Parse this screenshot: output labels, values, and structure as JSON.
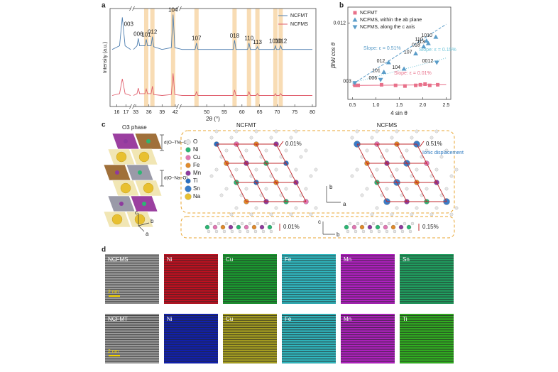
{
  "chart_data": [
    {
      "type": "line",
      "panel_label": "a",
      "ylabel": "Intensity (a.u.)",
      "xlabel": "2θ (°)",
      "x": [
        15.5,
        16.3,
        16.6,
        16.9,
        17.5,
        25,
        32.5,
        33.3,
        33.6,
        33.9,
        35.1,
        35.4,
        35.7,
        36.5,
        36.8,
        37.1,
        39,
        41.1,
        41.5,
        41.9,
        43,
        46.7,
        47.1,
        47.5,
        50,
        57.5,
        57.9,
        58.3,
        60,
        61.6,
        62,
        62.4,
        64,
        64.4,
        64.8,
        69.2,
        69.5,
        69.8,
        70.6,
        71,
        71.4,
        75,
        80
      ],
      "xlim": [
        [
          15.5,
          17.5
        ],
        [
          32.5,
          42.5
        ],
        [
          42.5,
          80
        ]
      ],
      "xticks": [
        16,
        17,
        33,
        36,
        39,
        42,
        50,
        55,
        60,
        65,
        70,
        75,
        80
      ],
      "ylim": [
        0,
        105
      ],
      "series": [
        {
          "name": "NCFMT",
          "color": "#4f7fb0",
          "values": [
            62,
            66,
            97,
            66,
            62,
            null,
            62,
            66,
            74,
            66,
            66,
            73,
            66,
            66,
            76,
            65,
            62,
            64,
            100,
            64,
            62,
            62,
            69,
            62,
            62,
            62,
            72,
            62,
            62,
            62,
            69,
            62,
            62,
            65,
            62,
            62,
            66,
            62,
            62,
            66,
            62,
            62,
            62
          ]
        },
        {
          "name": "NCFMS",
          "color": "#e0606e",
          "values": [
            12,
            14,
            30,
            14,
            12,
            null,
            12,
            14,
            20,
            14,
            14,
            19,
            14,
            14,
            22,
            13,
            12,
            13,
            36,
            13,
            12,
            12,
            16,
            12,
            12,
            12,
            18,
            12,
            12,
            12,
            16,
            12,
            12,
            14,
            12,
            12,
            14,
            12,
            12,
            14,
            12,
            12,
            12
          ]
        }
      ],
      "peak_labels": [
        {
          "label": "003",
          "x": 16.6
        },
        {
          "label": "006",
          "x": 33.6
        },
        {
          "label": "101",
          "x": 35.4
        },
        {
          "label": "012",
          "x": 36.8
        },
        {
          "label": "104",
          "x": 41.5
        },
        {
          "label": "107",
          "x": 47.1
        },
        {
          "label": "018",
          "x": 57.9
        },
        {
          "label": "110",
          "x": 62
        },
        {
          "label": "113",
          "x": 64.4
        },
        {
          "label": "1010",
          "x": 69.5
        },
        {
          "label": "0012",
          "x": 71
        }
      ]
    },
    {
      "type": "scatter",
      "panel_label": "b",
      "xlabel": "4 sin θ",
      "ylabel": "βhkl cos θ",
      "xlim": [
        0.4,
        2.6
      ],
      "xticks": [
        0.5,
        {
          "value": 1,
          "label": "1.0"
        },
        1.5,
        {
          "value": 2,
          "label": "2.0"
        },
        2.5
      ],
      "ylim": [
        0,
        0.0145
      ],
      "yticks": [
        0.012
      ],
      "series": [
        {
          "name": "NCFMT",
          "color": "#e8708a",
          "marker": "square",
          "x": [
            0.55,
            0.62,
            1.12,
            1.42,
            1.62,
            1.85,
            1.95,
            2.05,
            2.15,
            2.32
          ],
          "values": [
            0.0022,
            0.0022,
            0.0023,
            0.0022,
            0.0021,
            0.0022,
            0.0023,
            0.0024,
            0.0022,
            0.0023
          ]
        },
        {
          "name": "NCFMS, within the ab plane",
          "color": "#5a9cc8",
          "marker": "triangle-up",
          "x": [
            1.17,
            1.27,
            1.6,
            1.85,
            2.02,
            2.08,
            2.12,
            2.28
          ],
          "values": [
            0.0043,
            0.0058,
            0.0048,
            0.0072,
            0.0083,
            0.0092,
            0.0088,
            0.0098
          ],
          "point_labels": [
            "101",
            "012",
            "104",
            "107",
            "018",
            "110",
            "113",
            "1010"
          ]
        },
        {
          "name": "NCFMS, along the c axis",
          "color": "#5a9cc8",
          "marker": "triangle-down",
          "x": [
            0.55,
            1.1,
            2.3
          ],
          "values": [
            0.0026,
            0.0031,
            0.0058
          ],
          "point_labels": [
            "003",
            "006",
            "0012"
          ]
        }
      ],
      "fits": [
        {
          "label": "Slope: ε = 0.51%",
          "color": "#5a9cc8",
          "style": "dashed",
          "x": [
            0.5,
            2.5
          ],
          "y": [
            0.0024,
            0.0118
          ]
        },
        {
          "label": "Slope: ε = 0.15%",
          "color": "#6cc4d8",
          "style": "dotted",
          "x": [
            0.5,
            2.5
          ],
          "y": [
            0.0026,
            0.0065
          ]
        },
        {
          "label": "Slope: ε = 0.01%",
          "color": "#e8708a",
          "style": "solid",
          "x": [
            0.5,
            2.5
          ],
          "y": [
            0.0022,
            0.0023
          ]
        }
      ]
    }
  ],
  "panel_c": {
    "panel_label": "c",
    "structure_title": "O3 phase",
    "d_labels": [
      "d(O–TM–O)",
      "d(O–Na–O)"
    ],
    "axes": [
      "c",
      "b",
      "a"
    ],
    "elements": [
      {
        "label": "O",
        "color": "#e6e6e6"
      },
      {
        "label": "Ni",
        "color": "#2bb673"
      },
      {
        "label": "Cu",
        "color": "#e277b4"
      },
      {
        "label": "Fe",
        "color": "#e08a2a"
      },
      {
        "label": "Mn",
        "color": "#8e3a9e"
      },
      {
        "label": "Ti",
        "color": "#2a6fc0"
      },
      {
        "label": "Sn",
        "color": "#3a7cc8"
      },
      {
        "label": "Na",
        "color": "#e8c030"
      }
    ],
    "structures": [
      {
        "title": "NCFMT",
        "strain": "0.01%",
        "chain_strain": "0.01%"
      },
      {
        "title": "NCFMS",
        "strain": "0.51%",
        "note": "Ionic displacement",
        "chain_strain": "0.15%"
      }
    ],
    "lattice_axes": [
      "b",
      "a"
    ],
    "chain_axes": [
      "c",
      "b"
    ]
  },
  "panel_d": {
    "panel_label": "d",
    "rows": [
      {
        "sample": "NCFMS",
        "maps": [
          "Ni",
          "Cu",
          "Fe",
          "Mn",
          "Sn"
        ],
        "scale_bar": "2 nm"
      },
      {
        "sample": "NCFMT",
        "maps": [
          "Ni",
          "Cu",
          "Fe",
          "Mn",
          "Ti"
        ],
        "scale_bar": "2 nm"
      }
    ]
  }
}
